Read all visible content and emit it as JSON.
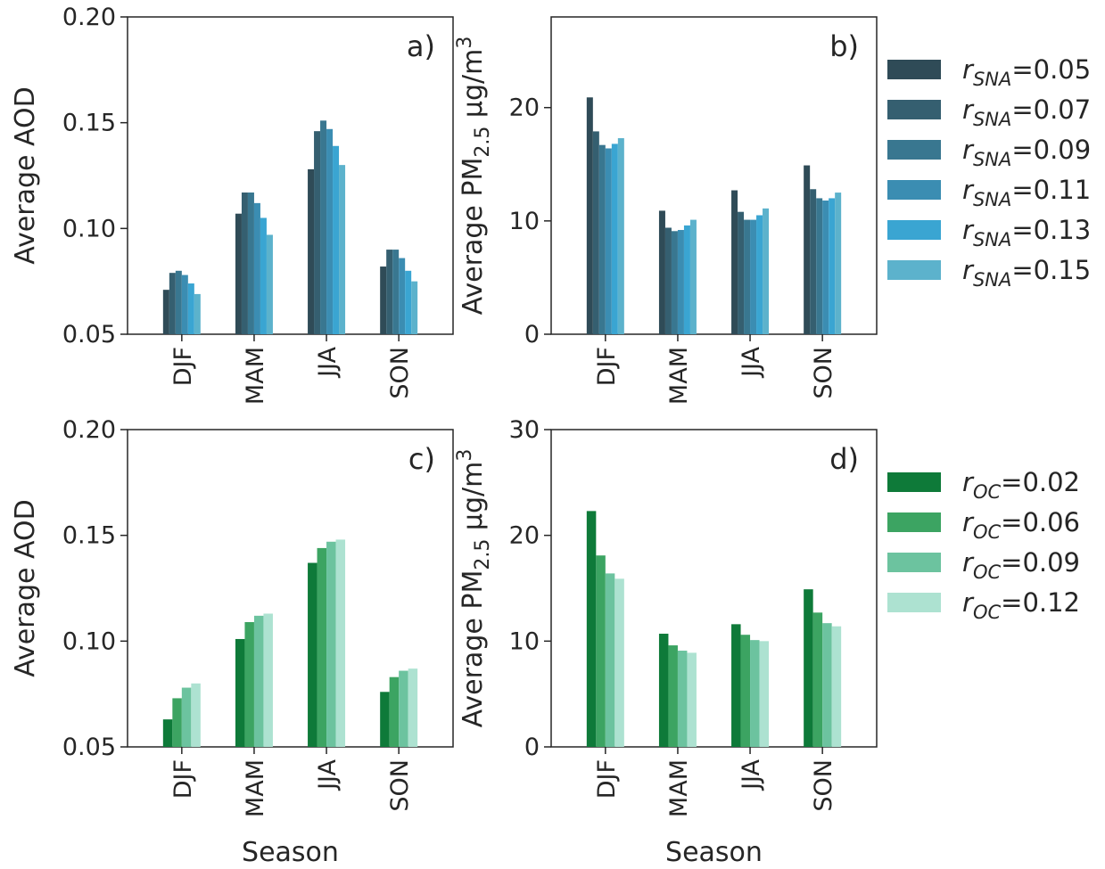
{
  "chart_data": [
    {
      "id": "a",
      "type": "bar",
      "panel_label": "a)",
      "categories": [
        "DJF",
        "MAM",
        "JJA",
        "SON"
      ],
      "ylabel": "Average AOD",
      "xlabel": "",
      "ylim": [
        0.05,
        0.2
      ],
      "yticks": [
        "0.05",
        "0.10",
        "0.15",
        "0.20"
      ],
      "series": [
        {
          "name": "r_SNA=0.05",
          "values": [
            0.071,
            0.107,
            0.128,
            0.082
          ]
        },
        {
          "name": "r_SNA=0.07",
          "values": [
            0.079,
            0.117,
            0.146,
            0.09
          ]
        },
        {
          "name": "r_SNA=0.09",
          "values": [
            0.08,
            0.117,
            0.151,
            0.09
          ]
        },
        {
          "name": "r_SNA=0.11",
          "values": [
            0.078,
            0.112,
            0.147,
            0.086
          ]
        },
        {
          "name": "r_SNA=0.13",
          "values": [
            0.074,
            0.105,
            0.139,
            0.08
          ]
        },
        {
          "name": "r_SNA=0.15",
          "values": [
            0.069,
            0.097,
            0.13,
            0.075
          ]
        }
      ]
    },
    {
      "id": "b",
      "type": "bar",
      "panel_label": "b)",
      "categories": [
        "DJF",
        "MAM",
        "JJA",
        "SON"
      ],
      "ylabel": "Average PM2.5 μg/m3",
      "xlabel": "",
      "ylim": [
        0,
        28
      ],
      "yticks": [
        "0",
        "10",
        "20"
      ],
      "series": [
        {
          "name": "r_SNA=0.05",
          "values": [
            20.9,
            10.9,
            12.7,
            14.9
          ]
        },
        {
          "name": "r_SNA=0.07",
          "values": [
            17.9,
            9.4,
            10.8,
            12.8
          ]
        },
        {
          "name": "r_SNA=0.09",
          "values": [
            16.7,
            9.1,
            10.1,
            12.0
          ]
        },
        {
          "name": "r_SNA=0.11",
          "values": [
            16.4,
            9.2,
            10.1,
            11.8
          ]
        },
        {
          "name": "r_SNA=0.13",
          "values": [
            16.8,
            9.6,
            10.5,
            12.0
          ]
        },
        {
          "name": "r_SNA=0.15",
          "values": [
            17.3,
            10.1,
            11.1,
            12.5
          ]
        }
      ]
    },
    {
      "id": "c",
      "type": "bar",
      "panel_label": "c)",
      "categories": [
        "DJF",
        "MAM",
        "JJA",
        "SON"
      ],
      "ylabel": "Average AOD",
      "xlabel": "Season",
      "ylim": [
        0.05,
        0.2
      ],
      "yticks": [
        "0.05",
        "0.10",
        "0.15",
        "0.20"
      ],
      "series": [
        {
          "name": "r_OC=0.02",
          "values": [
            0.063,
            0.101,
            0.137,
            0.076
          ]
        },
        {
          "name": "r_OC=0.06",
          "values": [
            0.073,
            0.109,
            0.144,
            0.083
          ]
        },
        {
          "name": "r_OC=0.09",
          "values": [
            0.078,
            0.112,
            0.147,
            0.086
          ]
        },
        {
          "name": "r_OC=0.12",
          "values": [
            0.08,
            0.113,
            0.148,
            0.087
          ]
        }
      ]
    },
    {
      "id": "d",
      "type": "bar",
      "panel_label": "d)",
      "categories": [
        "DJF",
        "MAM",
        "JJA",
        "SON"
      ],
      "ylabel": "Average PM2.5 μg/m3",
      "xlabel": "Season",
      "ylim": [
        0,
        30
      ],
      "yticks": [
        "0",
        "10",
        "20",
        "30"
      ],
      "series": [
        {
          "name": "r_OC=0.02",
          "values": [
            22.3,
            10.7,
            11.6,
            14.9
          ]
        },
        {
          "name": "r_OC=0.06",
          "values": [
            18.1,
            9.6,
            10.6,
            12.7
          ]
        },
        {
          "name": "r_OC=0.09",
          "values": [
            16.4,
            9.1,
            10.1,
            11.7
          ]
        },
        {
          "name": "r_OC=0.12",
          "values": [
            15.9,
            8.9,
            10.0,
            11.4
          ]
        }
      ]
    }
  ],
  "legends": {
    "sna": {
      "symbol": "r",
      "subscript": "SNA",
      "colors": [
        "#2f4b57",
        "#355f70",
        "#397790",
        "#3b8db2",
        "#3aa5d2",
        "#5cb2cc"
      ],
      "entries": [
        {
          "value": "=0.05"
        },
        {
          "value": "=0.07"
        },
        {
          "value": "=0.09"
        },
        {
          "value": "=0.11"
        },
        {
          "value": "=0.13"
        },
        {
          "value": "=0.15"
        }
      ]
    },
    "oc": {
      "symbol": "r",
      "subscript": "OC",
      "colors": [
        "#0e7a39",
        "#3ca462",
        "#6cc39f",
        "#ade2d1"
      ],
      "entries": [
        {
          "value": "=0.02"
        },
        {
          "value": "=0.06"
        },
        {
          "value": "=0.09"
        },
        {
          "value": "=0.12"
        }
      ]
    }
  },
  "pm_label": {
    "prefix": "Average PM",
    "subscript": "2.5",
    "unit": " μg/m",
    "superscript": "3"
  }
}
